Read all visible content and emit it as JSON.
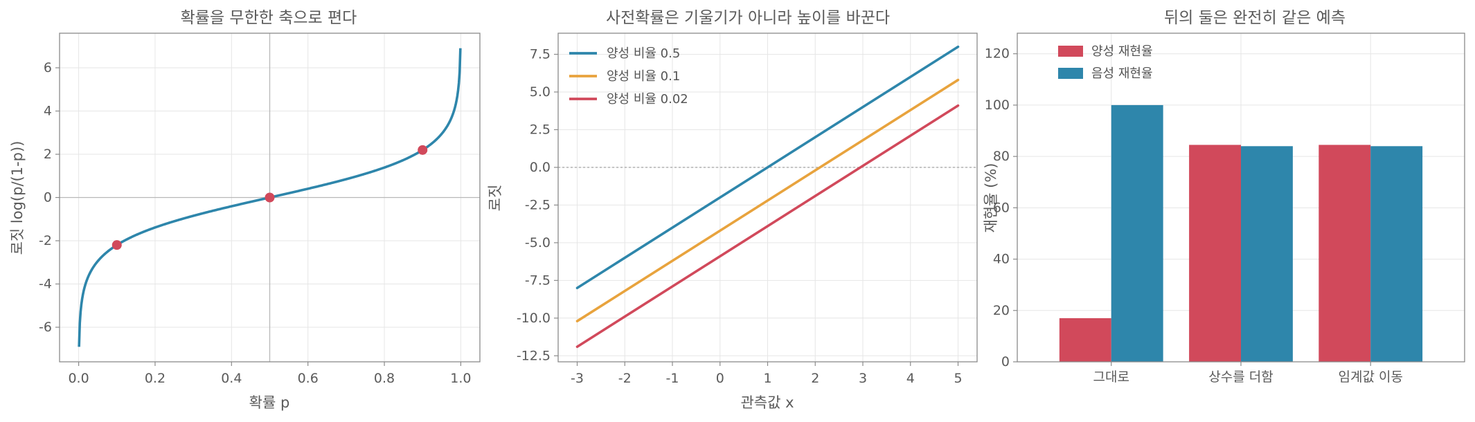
{
  "colors": {
    "blue": "#2e86ab",
    "orange": "#e8a33d",
    "red": "#d1495b",
    "ref": "#b8b8b8"
  },
  "chart_data": [
    {
      "type": "line",
      "title": "확률을 무한한 축으로 편다",
      "xlabel": "확률 p",
      "ylabel": "로짓 log(p/(1-p))",
      "xlim": [
        -0.05,
        1.05
      ],
      "ylim": [
        -7.6,
        7.6
      ],
      "xticks": [
        0.0,
        0.2,
        0.4,
        0.6,
        0.8,
        1.0
      ],
      "xtick_labels": [
        "0.0",
        "0.2",
        "0.4",
        "0.6",
        "0.8",
        "1.0"
      ],
      "yticks": [
        -6,
        -4,
        -2,
        0,
        2,
        4,
        6
      ],
      "ytick_labels": [
        "-6",
        "-4",
        "-2",
        "0",
        "2",
        "4",
        "6"
      ],
      "series": [
        {
          "function": "logit",
          "x_range": [
            0.001,
            0.999
          ],
          "color": "#2e86ab"
        }
      ],
      "points": [
        {
          "x": 0.1,
          "y": -2.197
        },
        {
          "x": 0.5,
          "y": 0.0
        },
        {
          "x": 0.9,
          "y": 2.197
        }
      ],
      "reference_lines": {
        "vertical_x": 0.5,
        "horizontal_y": 0
      },
      "grid": true
    },
    {
      "type": "line",
      "title": "사전확률은 기울기가 아니라 높이를 바꾼다",
      "xlabel": "관측값 x",
      "ylabel": "로짓",
      "xlim": [
        -3.4,
        5.4
      ],
      "ylim": [
        -12.9,
        8.9
      ],
      "xticks": [
        -3,
        -2,
        -1,
        0,
        1,
        2,
        3,
        4,
        5
      ],
      "xtick_labels": [
        "-3",
        "-2",
        "-1",
        "0",
        "1",
        "2",
        "3",
        "4",
        "5"
      ],
      "yticks": [
        -12.5,
        -10.0,
        -7.5,
        -5.0,
        -2.5,
        0.0,
        2.5,
        5.0,
        7.5
      ],
      "ytick_labels": [
        "-12.5",
        "-10.0",
        "-7.5",
        "-5.0",
        "-2.5",
        "0.0",
        "2.5",
        "5.0",
        "7.5"
      ],
      "x": [
        -3,
        5
      ],
      "series": [
        {
          "name": "양성 비율 0.5",
          "values": [
            -8.0,
            8.0
          ],
          "color": "#2e86ab"
        },
        {
          "name": "양성 비율 0.1",
          "values": [
            -10.2,
            5.8
          ],
          "color": "#e8a33d"
        },
        {
          "name": "양성 비율 0.02",
          "values": [
            -11.9,
            4.1
          ],
          "color": "#d1495b"
        }
      ],
      "reference_lines": {
        "horizontal_y": 0
      },
      "legend": "top-left",
      "grid": true
    },
    {
      "type": "bar",
      "title": "뒤의 둘은 완전히 같은 예측",
      "xlabel": "",
      "ylabel": "재현율 (%)",
      "ylim": [
        0,
        128
      ],
      "yticks": [
        0,
        20,
        40,
        60,
        80,
        100,
        120
      ],
      "ytick_labels": [
        "0",
        "20",
        "40",
        "60",
        "80",
        "100",
        "120"
      ],
      "categories": [
        "그대로",
        "상수를 더함",
        "임계값 이동"
      ],
      "series": [
        {
          "name": "양성 재현율",
          "values": [
            17.0,
            84.5,
            84.5
          ],
          "color": "#d1495b"
        },
        {
          "name": "음성 재현율",
          "values": [
            100.0,
            84.0,
            84.0
          ],
          "color": "#2e86ab"
        }
      ],
      "legend": "top-left",
      "grid": true
    }
  ]
}
